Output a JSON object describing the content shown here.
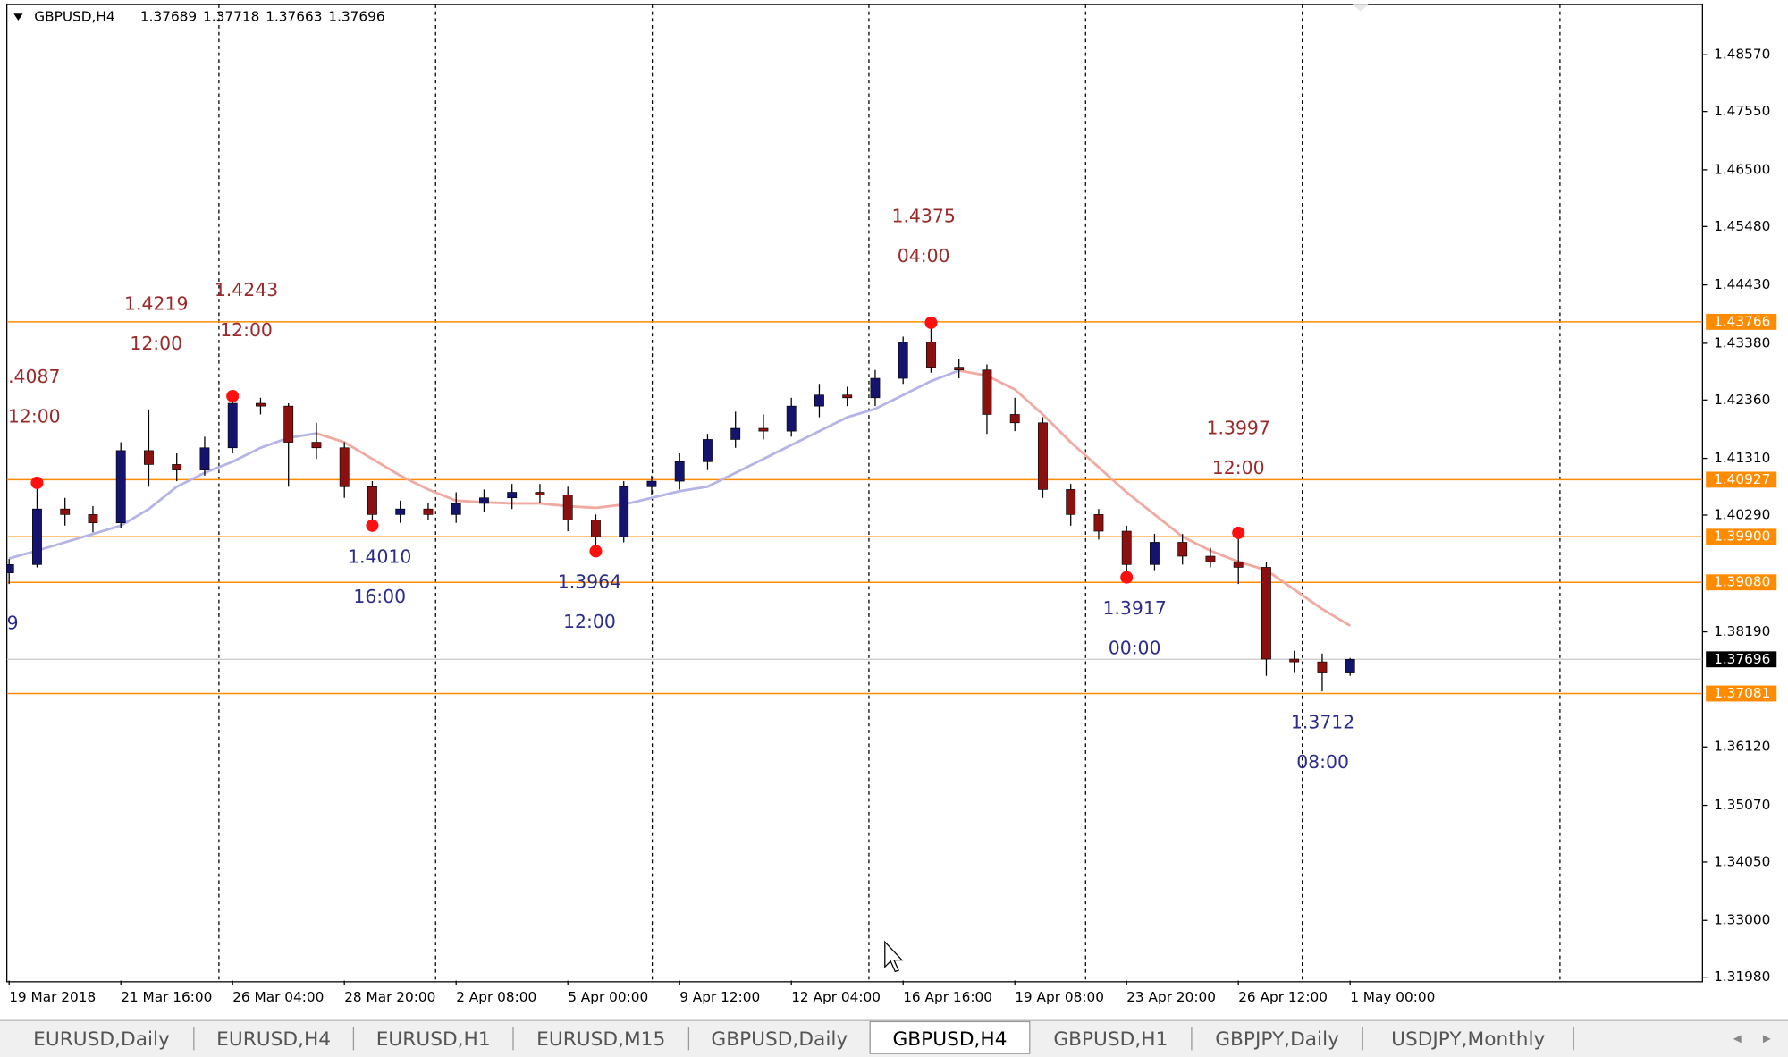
{
  "header": {
    "symbol": "GBPUSD,H4",
    "quote": [
      1.37689,
      1.37718,
      1.37663,
      1.37696
    ]
  },
  "chart_data": {
    "type": "candlestick",
    "categories": [
      "19 Mar 2018",
      null,
      null,
      null,
      "21 Mar 16:00",
      null,
      null,
      null,
      "26 Mar 04:00",
      null,
      null,
      null,
      "28 Mar 20:00",
      null,
      null,
      null,
      "2 Apr 08:00",
      null,
      null,
      null,
      "5 Apr 00:00",
      null,
      null,
      null,
      "9 Apr 12:00",
      null,
      null,
      null,
      "12 Apr 04:00",
      null,
      null,
      null,
      "16 Apr 16:00",
      null,
      null,
      null,
      "19 Apr 08:00",
      null,
      null,
      null,
      "23 Apr 20:00",
      null,
      null,
      null,
      "26 Apr 12:00",
      null,
      null,
      null,
      "1 May 00:00"
    ],
    "open": [
      1.3925,
      1.394,
      1.404,
      1.403,
      1.4015,
      1.4145,
      1.412,
      1.411,
      1.415,
      1.423,
      1.4225,
      1.416,
      1.415,
      1.408,
      1.403,
      1.404,
      1.403,
      1.405,
      1.406,
      1.407,
      1.4065,
      1.402,
      1.399,
      1.408,
      1.409,
      1.4125,
      1.4165,
      1.4185,
      1.418,
      1.4225,
      1.4245,
      1.424,
      1.4275,
      1.434,
      1.4295,
      1.429,
      1.421,
      1.4195,
      1.4075,
      1.403,
      1.4,
      1.394,
      1.398,
      1.3955,
      1.3945,
      1.3935,
      1.377,
      1.3765,
      1.3745
    ],
    "high": [
      1.395,
      1.4087,
      1.406,
      1.4045,
      1.416,
      1.4219,
      1.414,
      1.417,
      1.4243,
      1.424,
      1.423,
      1.4195,
      1.416,
      1.409,
      1.4055,
      1.405,
      1.407,
      1.4075,
      1.4085,
      1.4085,
      1.408,
      1.403,
      1.409,
      1.41,
      1.414,
      1.4175,
      1.4215,
      1.421,
      1.424,
      1.4265,
      1.426,
      1.429,
      1.435,
      1.4375,
      1.431,
      1.43,
      1.424,
      1.4205,
      1.4085,
      1.404,
      1.401,
      1.3995,
      1.3995,
      1.397,
      1.3997,
      1.3945,
      1.3785,
      1.378,
      1.3772
    ],
    "low": [
      1.3905,
      1.3935,
      1.401,
      1.3998,
      1.4005,
      1.408,
      1.409,
      1.41,
      1.414,
      1.421,
      1.408,
      1.413,
      1.406,
      1.401,
      1.4015,
      1.402,
      1.4015,
      1.4035,
      1.404,
      1.405,
      1.4,
      1.3964,
      1.398,
      1.4065,
      1.4075,
      1.411,
      1.415,
      1.4165,
      1.417,
      1.4205,
      1.4225,
      1.4225,
      1.4265,
      1.4285,
      1.4275,
      1.4175,
      1.418,
      1.406,
      1.401,
      1.3985,
      1.3917,
      1.393,
      1.394,
      1.3935,
      1.3905,
      1.374,
      1.3745,
      1.3712,
      1.374
    ],
    "close": [
      1.394,
      1.404,
      1.403,
      1.4015,
      1.4145,
      1.412,
      1.411,
      1.415,
      1.423,
      1.4225,
      1.416,
      1.415,
      1.408,
      1.403,
      1.404,
      1.403,
      1.405,
      1.406,
      1.407,
      1.4065,
      1.402,
      1.399,
      1.408,
      1.409,
      1.4125,
      1.4165,
      1.4185,
      1.418,
      1.4225,
      1.4245,
      1.424,
      1.4275,
      1.434,
      1.4295,
      1.429,
      1.421,
      1.4195,
      1.4075,
      1.403,
      1.4,
      1.394,
      1.398,
      1.3955,
      1.3945,
      1.3935,
      1.377,
      1.3765,
      1.3745,
      1.37696
    ],
    "up_color": "#14146e",
    "down_color": "#8b1010",
    "lines": [
      {
        "color": "#b4b4e6",
        "values": [
          1.3951,
          1.3965,
          1.398,
          1.3995,
          1.401,
          1.404,
          1.408,
          1.4105,
          1.4125,
          1.415,
          1.4168,
          1.4176,
          null,
          null,
          null,
          null,
          null,
          null,
          null,
          null,
          null,
          null,
          1.4048,
          1.406,
          1.4072,
          1.408,
          1.4105,
          1.413,
          1.4155,
          1.418,
          1.4205,
          1.422,
          1.4245,
          1.427,
          1.4289,
          null,
          null,
          null,
          null,
          null,
          null,
          null,
          null,
          null,
          null,
          null,
          null,
          null,
          null
        ]
      },
      {
        "color": "#f0aaa2",
        "values": [
          null,
          null,
          null,
          null,
          null,
          null,
          null,
          null,
          null,
          null,
          null,
          1.4176,
          1.416,
          1.413,
          1.41,
          1.4075,
          1.4055,
          1.4052,
          1.405,
          1.405,
          1.4045,
          1.4042,
          1.4048,
          null,
          null,
          null,
          null,
          null,
          null,
          null,
          null,
          null,
          null,
          null,
          1.4289,
          1.428,
          1.4255,
          1.421,
          1.416,
          1.4115,
          1.407,
          1.403,
          1.399,
          1.3965,
          1.3945,
          1.393,
          1.3895,
          1.386,
          1.383
        ]
      }
    ],
    "levels": [
      1.43766,
      1.40927,
      {
        "value": 1.399,
        "label": "1.39900"
      },
      {
        "value": 1.3908,
        "label": "1.39080"
      },
      1.37081
    ],
    "level_color": "#ff8c00",
    "current": 1.37696,
    "ylim": [
      1.31917,
      1.49452
    ],
    "yticks": [
      {
        "value": 1.4857,
        "label": "1.48570"
      },
      {
        "value": 1.4755,
        "label": "1.47550"
      },
      {
        "value": 1.465,
        "label": "1.46500"
      },
      {
        "value": 1.4548,
        "label": "1.45480"
      },
      {
        "value": 1.4443,
        "label": "1.44430"
      },
      {
        "value": 1.4338,
        "label": "1.43380"
      },
      {
        "value": 1.4236,
        "label": "1.42360"
      },
      {
        "value": 1.4131,
        "label": "1.41310"
      },
      {
        "value": 1.4029,
        "label": "1.40290"
      },
      {
        "value": 1.3819,
        "label": "1.38190"
      },
      {
        "value": 1.3612,
        "label": "1.36120"
      },
      {
        "value": 1.3507,
        "label": "1.35070"
      },
      {
        "value": 1.3405,
        "label": "1.34050"
      },
      {
        "value": 1.33,
        "label": "1.33000"
      },
      {
        "value": 1.3198,
        "label": "1.31980"
      }
    ],
    "grid": false,
    "annotations": [
      {
        "price": ".4087",
        "time": "12:00",
        "kind": "high"
      },
      {
        "price": "1.4219",
        "time": "12:00",
        "kind": "high"
      },
      {
        "price": "1.4243",
        "time": "12:00",
        "kind": "high"
      },
      {
        "price": "1.4010",
        "time": "16:00",
        "kind": "low"
      },
      {
        "price": "1.3964",
        "time": "12:00",
        "kind": "low"
      },
      {
        "price": "1.4375",
        "time": "04:00",
        "kind": "high"
      },
      {
        "price": "1.3917",
        "time": "00:00",
        "kind": "low"
      },
      {
        "price": "1.3997",
        "time": "12:00",
        "kind": "high"
      },
      {
        "price": "1.3712",
        "time": "08:00",
        "kind": "low"
      }
    ],
    "partial_label": "9"
  },
  "tabs": [
    "EURUSD,Daily",
    "EURUSD,H4",
    "EURUSD,H1",
    "EURUSD,M15",
    "GBPUSD,Daily",
    "GBPUSD,H4",
    "GBPUSD,H1",
    "GBPJPY,Daily",
    "USDJPY,Monthly"
  ],
  "active_tab": "GBPUSD,H4"
}
